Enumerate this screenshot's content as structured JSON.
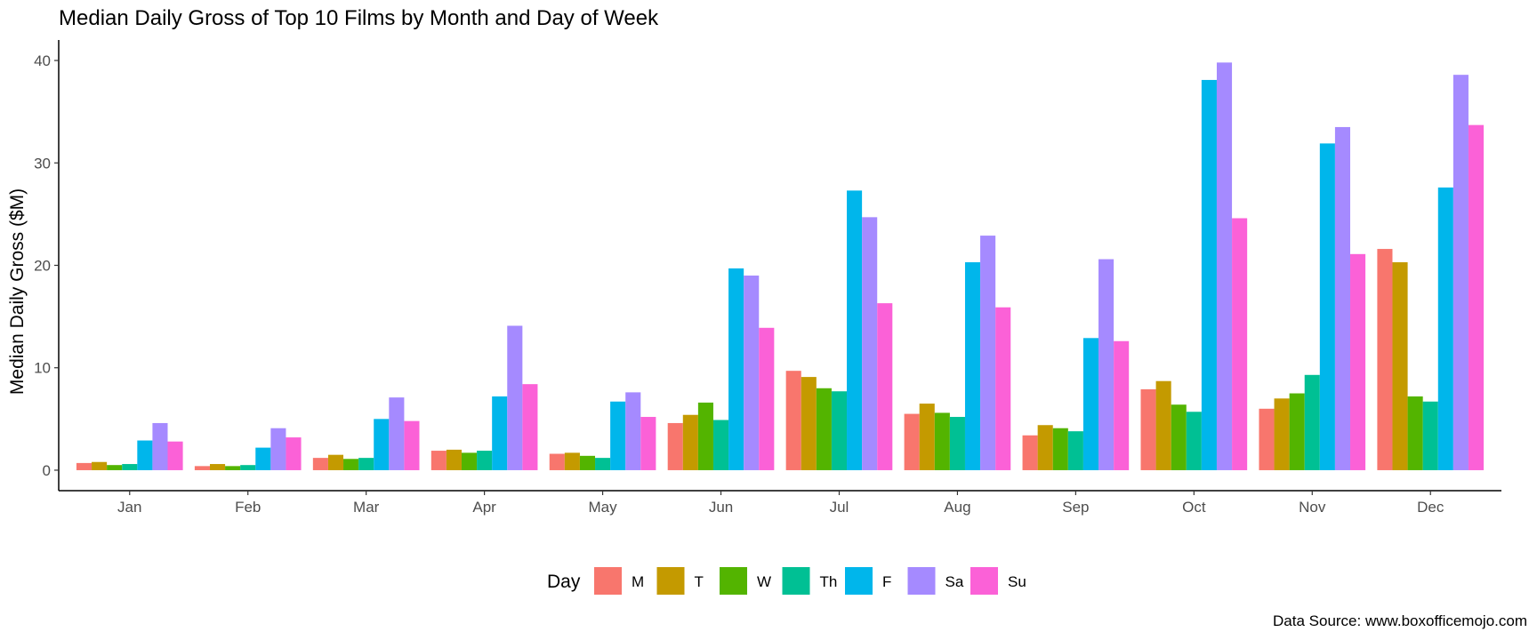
{
  "chart_data": {
    "type": "bar",
    "title": "Median Daily Gross of Top 10 Films by Month and Day of Week",
    "xlabel": "",
    "ylabel": "Median Daily Gross ($M)",
    "ylim": [
      -2,
      42
    ],
    "yticks": [
      0,
      10,
      20,
      30,
      40
    ],
    "grid": false,
    "legend": {
      "title": "Day",
      "position": "bottom"
    },
    "caption": "Data Source: www.boxofficemojo.com",
    "categories": [
      "Jan",
      "Feb",
      "Mar",
      "Apr",
      "May",
      "Jun",
      "Jul",
      "Aug",
      "Sep",
      "Oct",
      "Nov",
      "Dec"
    ],
    "series": [
      {
        "name": "M",
        "color": "#F8766D",
        "values": [
          0.7,
          0.4,
          1.2,
          1.9,
          1.6,
          4.6,
          9.7,
          5.5,
          3.4,
          7.9,
          6.0,
          21.6
        ]
      },
      {
        "name": "T",
        "color": "#C49A00",
        "values": [
          0.8,
          0.6,
          1.5,
          2.0,
          1.7,
          5.4,
          9.1,
          6.5,
          4.4,
          8.7,
          7.0,
          20.3
        ]
      },
      {
        "name": "W",
        "color": "#53B400",
        "values": [
          0.5,
          0.4,
          1.1,
          1.7,
          1.4,
          6.6,
          8.0,
          5.6,
          4.1,
          6.4,
          7.5,
          7.2
        ]
      },
      {
        "name": "Th",
        "color": "#00C094",
        "values": [
          0.6,
          0.5,
          1.2,
          1.9,
          1.2,
          4.9,
          7.7,
          5.2,
          3.8,
          5.7,
          9.3,
          6.7
        ]
      },
      {
        "name": "F",
        "color": "#00B6EB",
        "values": [
          2.9,
          2.2,
          5.0,
          7.2,
          6.7,
          19.7,
          27.3,
          20.3,
          12.9,
          38.1,
          31.9,
          27.6
        ]
      },
      {
        "name": "Sa",
        "color": "#A58AFF",
        "values": [
          4.6,
          4.1,
          7.1,
          14.1,
          7.6,
          19.0,
          24.7,
          22.9,
          20.6,
          39.8,
          33.5,
          38.6
        ]
      },
      {
        "name": "Su",
        "color": "#FB61D7",
        "values": [
          2.8,
          3.2,
          4.8,
          8.4,
          5.2,
          13.9,
          16.3,
          15.9,
          12.6,
          24.6,
          21.1,
          33.7
        ]
      }
    ]
  }
}
